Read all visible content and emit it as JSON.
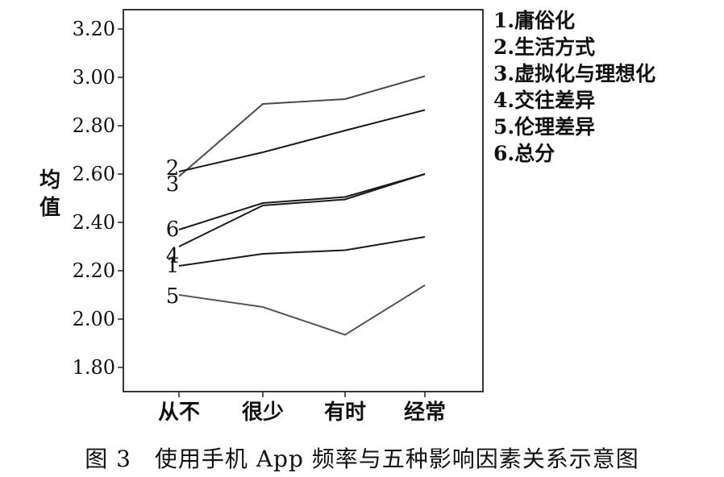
{
  "chart_data": {
    "type": "line",
    "categories": [
      "从不",
      "很少",
      "有时",
      "经常"
    ],
    "ylabel": "均值",
    "ylim": [
      1.7,
      3.28
    ],
    "yticks": [
      1.8,
      2.0,
      2.2,
      2.4,
      2.6,
      2.8,
      3.0,
      3.2
    ],
    "ytick_labels": [
      "1.80",
      "2.00",
      "2.20",
      "2.40",
      "2.60",
      "2.80",
      "3.00",
      "3.20"
    ],
    "grid": false,
    "legend_position": "right",
    "legend": [
      "1.庸俗化",
      "2.生活方式",
      "3.虚拟化与理想化",
      "4.交往差异",
      "5.伦理差异",
      "6.总分"
    ],
    "series": [
      {
        "label": "1",
        "values": [
          2.22,
          2.27,
          2.285,
          2.34
        ],
        "color": "#1a1a1a"
      },
      {
        "label": "2",
        "values": [
          2.59,
          2.89,
          2.91,
          3.005
        ],
        "color": "#4a4a4a"
      },
      {
        "label": "3",
        "values": [
          2.61,
          2.69,
          2.78,
          2.865
        ],
        "color": "#1a1a1a"
      },
      {
        "label": "4",
        "values": [
          2.3,
          2.47,
          2.495,
          2.6
        ],
        "color": "#1a1a1a"
      },
      {
        "label": "5",
        "values": [
          2.1,
          2.05,
          1.935,
          2.14
        ],
        "color": "#555555"
      },
      {
        "label": "6",
        "values": [
          2.37,
          2.48,
          2.505,
          2.6
        ],
        "color": "#1a1a1a"
      }
    ]
  },
  "caption": "图 3　使用手机 App 频率与五种影响因素关系示意图"
}
